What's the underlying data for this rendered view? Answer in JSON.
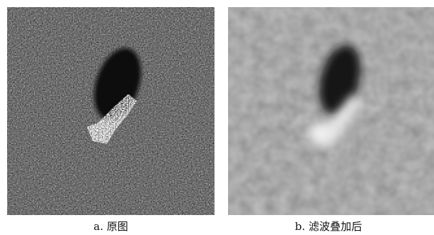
{
  "figure": {
    "panels": [
      {
        "id": "a",
        "caption": "a. 原图"
      },
      {
        "id": "b",
        "caption": "b. 滤波叠加后"
      }
    ],
    "colors": {
      "background": "#ffffff",
      "caption_text": "#111111",
      "noise_base_a": "#1e1e1e",
      "filtered_base_b": "#6e6e6e",
      "shadow": "#141414",
      "bright_highlight": "#ffffff"
    }
  }
}
